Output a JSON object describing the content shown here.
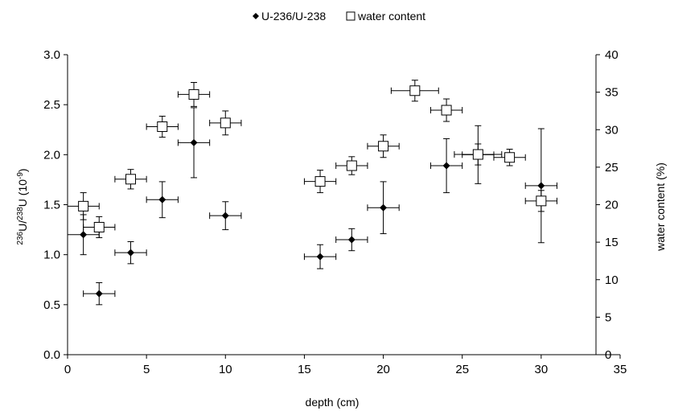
{
  "chart_data": {
    "type": "scatter",
    "legend_placement": "top-center",
    "grid": false,
    "xlabel": "depth (cm)",
    "ylabel_left": {
      "sup1": "236",
      "base1": "U/",
      "sup2": "238",
      "base2": "U (10",
      "sup3": "-9",
      "base3": ")"
    },
    "ylabel_right": "water content (%)",
    "xlim": [
      0,
      35
    ],
    "x_ticks": [
      "0",
      "5",
      "10",
      "15",
      "20",
      "25",
      "30",
      "35"
    ],
    "ylim_left": [
      0,
      3
    ],
    "y_ticks_left": [
      "0.0",
      "0.5",
      "1.0",
      "1.5",
      "2.0",
      "2.5",
      "3.0"
    ],
    "ylim_right": [
      0,
      40
    ],
    "y_ticks_right": [
      "0",
      "5",
      "10",
      "15",
      "20",
      "25",
      "30",
      "35",
      "40"
    ],
    "series": [
      {
        "name": "U-236/U-238",
        "axis": "left",
        "marker": "diamond",
        "color": "#000000",
        "points": [
          {
            "x": 1,
            "y": 1.2,
            "xerr": 1,
            "yerr": 0.2
          },
          {
            "x": 2,
            "y": 0.61,
            "xerr": 1,
            "yerr": 0.11
          },
          {
            "x": 4,
            "y": 1.02,
            "xerr": 1,
            "yerr": 0.11
          },
          {
            "x": 6,
            "y": 1.55,
            "xerr": 1,
            "yerr": 0.18
          },
          {
            "x": 8,
            "y": 2.12,
            "xerr": 1,
            "yerr": 0.35
          },
          {
            "x": 10,
            "y": 1.39,
            "xerr": 1,
            "yerr": 0.14
          },
          {
            "x": 16,
            "y": 0.98,
            "xerr": 1,
            "yerr": 0.12
          },
          {
            "x": 18,
            "y": 1.15,
            "xerr": 1,
            "yerr": 0.11
          },
          {
            "x": 20,
            "y": 1.47,
            "xerr": 1,
            "yerr": 0.26
          },
          {
            "x": 24,
            "y": 1.89,
            "xerr": 1,
            "yerr": 0.27
          },
          {
            "x": 26,
            "y": 2.0,
            "xerr": 1,
            "yerr": 0.29
          },
          {
            "x": 30,
            "y": 1.69,
            "xerr": 1,
            "yerr": 0.57
          }
        ]
      },
      {
        "name": "water content",
        "axis": "right",
        "marker": "open-square",
        "color": "#000000",
        "points": [
          {
            "x": 1,
            "y": 19.8,
            "xerr": 1,
            "yerr": 1.8
          },
          {
            "x": 2,
            "y": 17.0,
            "xerr": 1,
            "yerr": 1.4
          },
          {
            "x": 4,
            "y": 23.4,
            "xerr": 1,
            "yerr": 1.3
          },
          {
            "x": 6,
            "y": 30.4,
            "xerr": 1,
            "yerr": 1.4
          },
          {
            "x": 8,
            "y": 34.7,
            "xerr": 1,
            "yerr": 1.6
          },
          {
            "x": 10,
            "y": 30.9,
            "xerr": 1,
            "yerr": 1.6
          },
          {
            "x": 16,
            "y": 23.1,
            "xerr": 1,
            "yerr": 1.5
          },
          {
            "x": 18,
            "y": 25.2,
            "xerr": 1,
            "yerr": 1.2
          },
          {
            "x": 20,
            "y": 27.8,
            "xerr": 1,
            "yerr": 1.5
          },
          {
            "x": 22,
            "y": 35.2,
            "xerr": 1.5,
            "yerr": 1.4
          },
          {
            "x": 24,
            "y": 32.6,
            "xerr": 1,
            "yerr": 1.5
          },
          {
            "x": 26,
            "y": 26.7,
            "xerr": 1.5,
            "yerr": 1.4
          },
          {
            "x": 28,
            "y": 26.3,
            "xerr": 1,
            "yerr": 1.1
          },
          {
            "x": 30,
            "y": 20.5,
            "xerr": 1,
            "yerr": 1.4
          }
        ]
      }
    ]
  }
}
